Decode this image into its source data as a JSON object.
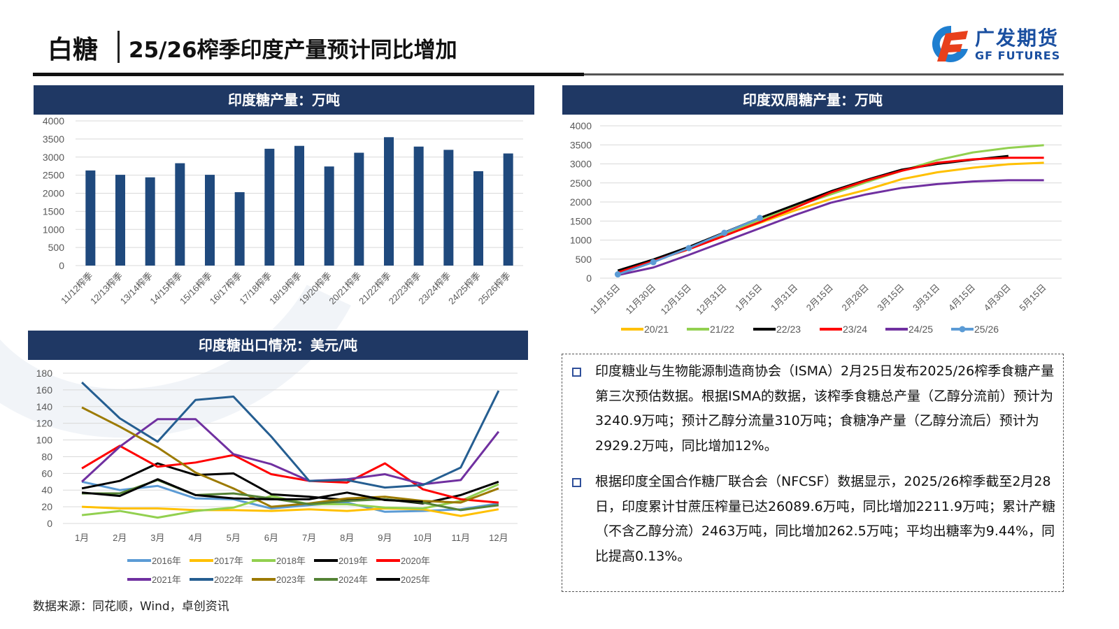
{
  "header": {
    "category": "白糖",
    "title": "25/26榨季印度产量预计同比增加",
    "logo_cn": "广发期货",
    "logo_en": "GF FUTURES"
  },
  "panels": {
    "production_title": "印度糖产量：万吨",
    "biweekly_title": "印度双周糖产量：万吨",
    "export_title": "印度糖出口情况：美元/吨"
  },
  "textbox": {
    "paragraphs": [
      "印度糖业与生物能源制造商协会（ISMA）2月25日发布2025/26榨季食糖产量第三次预估数据。根据ISMA的数据，该榨季食糖总产量（乙醇分流前）预计为3240.9万吨；预计乙醇分流量310万吨；食糖净产量（乙醇分流后）预计为2929.2万吨，同比增加12%。",
      "根据印度全国合作糖厂联合会（NFCSF）数据显示，2025/26榨季截至2月28日，印度累计甘蔗压榨量已达26089.6万吨，同比增加2211.9万吨；累计产糖（不含乙醇分流）2463万吨，同比增加262.5万吨；平均出糖率为9.44%，同比提高0.13%。"
    ],
    "bullet_color": "#2f4f9a"
  },
  "source": "数据来源：同花顺，Wind，卓创资讯",
  "colors": {
    "panel_header": "#1f3864",
    "bar": "#1f497d"
  },
  "chart_data": [
    {
      "id": "production",
      "type": "bar",
      "title": "印度糖产量：万吨",
      "categories": [
        "11/12榨季",
        "12/13榨季",
        "13/14榨季",
        "14/15榨季",
        "15/16榨季",
        "16/17榨季",
        "17/18榨季",
        "18/19榨季",
        "19/20榨季",
        "20/21榨季",
        "21/22榨季",
        "22/23榨季",
        "23/24榨季",
        "24/25榨季",
        "25/26榨季"
      ],
      "values": [
        2630,
        2510,
        2440,
        2830,
        2510,
        2030,
        3230,
        3310,
        2740,
        3120,
        3550,
        3290,
        3200,
        2610,
        3100
      ],
      "ylim": [
        0,
        4000
      ],
      "yticks": [
        0,
        500,
        1000,
        1500,
        2000,
        2500,
        3000,
        3500,
        4000
      ],
      "grid": true,
      "color": "#1f497d"
    },
    {
      "id": "biweekly",
      "type": "line",
      "title": "印度双周糖产量：万吨",
      "categories": [
        "11月15日",
        "11月30日",
        "12月15日",
        "12月31日",
        "1月15日",
        "1月31日",
        "2月15日",
        "2月28日",
        "3月15日",
        "3月31日",
        "4月15日",
        "4月30日",
        "5月15日"
      ],
      "ylim": [
        0,
        4000
      ],
      "yticks": [
        0,
        500,
        1000,
        1500,
        2000,
        2500,
        3000,
        3500,
        4000
      ],
      "grid": true,
      "legend": "bottom",
      "series": [
        {
          "name": "20/21",
          "color": "#ffc000",
          "values": [
            130,
            450,
            760,
            1130,
            1450,
            1780,
            2080,
            2320,
            2600,
            2780,
            2900,
            2990,
            3030
          ]
        },
        {
          "name": "21/22",
          "color": "#92d050",
          "values": [
            180,
            460,
            780,
            1150,
            1530,
            1880,
            2200,
            2520,
            2820,
            3100,
            3300,
            3420,
            3490
          ]
        },
        {
          "name": "22/23",
          "color": "#000000",
          "values": [
            200,
            490,
            820,
            1200,
            1580,
            1930,
            2280,
            2580,
            2850,
            3000,
            3110,
            3210,
            null
          ]
        },
        {
          "name": "23/24",
          "color": "#ff0000",
          "values": [
            150,
            450,
            760,
            1110,
            1470,
            1850,
            2250,
            2560,
            2820,
            3030,
            3120,
            3160,
            3160
          ]
        },
        {
          "name": "24/25",
          "color": "#7030a0",
          "values": [
            80,
            280,
            610,
            960,
            1310,
            1660,
            1980,
            2200,
            2370,
            2470,
            2540,
            2570,
            2570
          ]
        },
        {
          "name": "25/26",
          "color": "#5b9bd5",
          "marker": true,
          "values": [
            100,
            420,
            790,
            1190,
            1580,
            null,
            null,
            null,
            null,
            null,
            null,
            null,
            null
          ]
        }
      ]
    },
    {
      "id": "export",
      "type": "line",
      "title": "印度糖出口情况：美元/吨",
      "categories": [
        "1月",
        "2月",
        "3月",
        "4月",
        "5月",
        "6月",
        "7月",
        "8月",
        "9月",
        "10月",
        "11月",
        "12月"
      ],
      "ylim": [
        0,
        180
      ],
      "yticks": [
        0,
        20,
        40,
        60,
        80,
        100,
        120,
        140,
        160,
        180
      ],
      "grid": true,
      "legend": "bottom",
      "series": [
        {
          "name": "2016年",
          "color": "#5b9bd5",
          "values": [
            50,
            40,
            45,
            30,
            29,
            18,
            22,
            25,
            14,
            15,
            17,
            24
          ]
        },
        {
          "name": "2017年",
          "color": "#ffc000",
          "values": [
            20,
            18,
            18,
            16,
            16,
            15,
            17,
            15,
            18,
            17,
            9,
            17
          ]
        },
        {
          "name": "2018年",
          "color": "#92d050",
          "values": [
            10,
            15,
            7,
            15,
            19,
            33,
            23,
            23,
            19,
            18,
            27,
            47
          ]
        },
        {
          "name": "2019年",
          "color": "#000000",
          "values": [
            42,
            51,
            72,
            58,
            60,
            35,
            32,
            28,
            29,
            24,
            34,
            50
          ]
        },
        {
          "name": "2020年",
          "color": "#ff0000",
          "values": [
            66,
            93,
            68,
            73,
            82,
            59,
            51,
            49,
            72,
            41,
            29,
            25
          ]
        },
        {
          "name": "2021年",
          "color": "#7030a0",
          "values": [
            50,
            92,
            125,
            125,
            83,
            71,
            51,
            53,
            59,
            47,
            52,
            110
          ]
        },
        {
          "name": "2022年",
          "color": "#255e91",
          "values": [
            169,
            126,
            98,
            148,
            152,
            104,
            51,
            52,
            43,
            46,
            67,
            159
          ]
        },
        {
          "name": "2023年",
          "color": "#9c7a00",
          "values": [
            139,
            116,
            91,
            61,
            42,
            20,
            24,
            30,
            32,
            27,
            25,
            42
          ]
        },
        {
          "name": "2024年",
          "color": "#548235",
          "values": [
            36,
            36,
            52,
            34,
            36,
            30,
            23,
            27,
            29,
            25,
            16,
            22
          ]
        },
        {
          "name": "2025年",
          "color": "#000000",
          "values": [
            37,
            33,
            53,
            34,
            30,
            29,
            29,
            37,
            28,
            26,
            null,
            null
          ]
        }
      ]
    }
  ]
}
